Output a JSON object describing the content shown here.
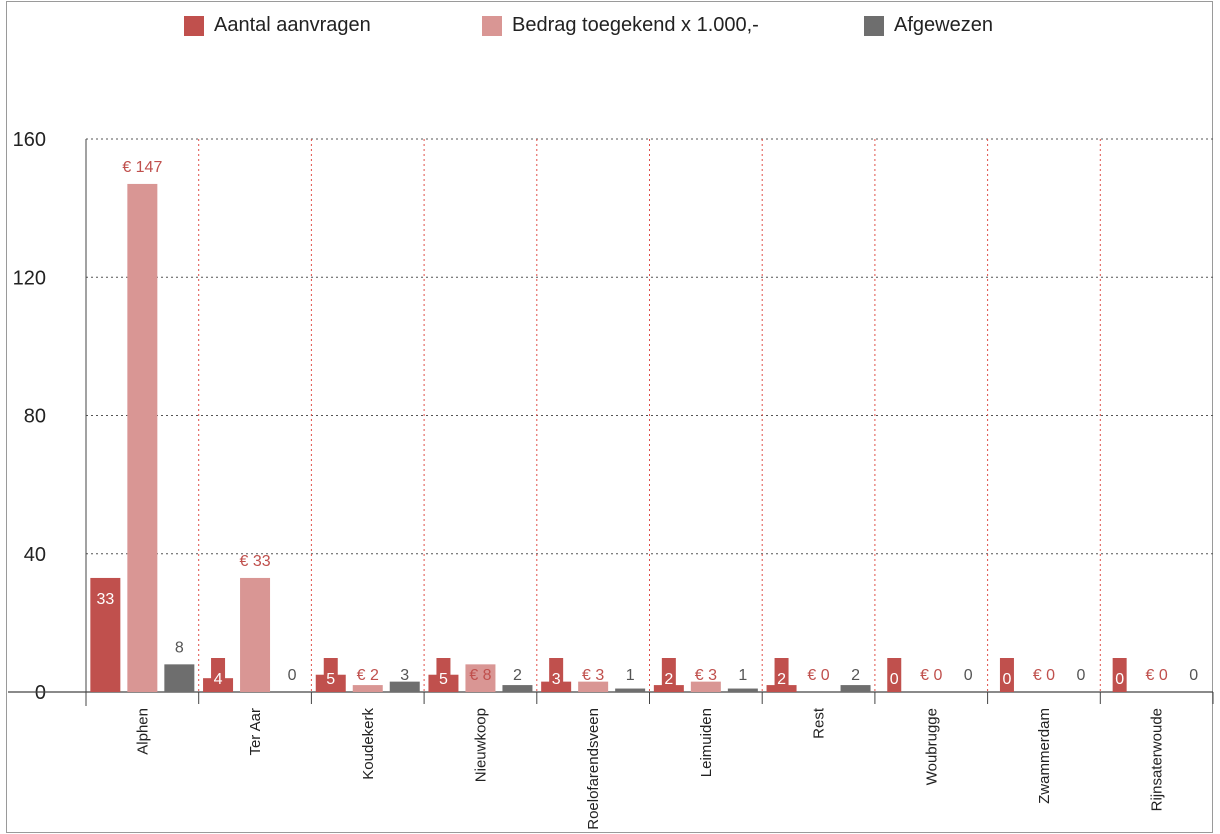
{
  "chart_data": {
    "type": "bar",
    "categories": [
      "Alphen",
      "Ter Aar",
      "Koudekerk",
      "Nieuwkoop",
      "Roelofarendsveen",
      "Leimuiden",
      "Rest",
      "Woubrugge",
      "Zwammerdam",
      "Rijnsaterwoude"
    ],
    "series": [
      {
        "name": "Aantal aanvragen",
        "color": "#c0504d",
        "values": [
          33,
          4,
          5,
          5,
          3,
          2,
          2,
          0,
          0,
          0
        ],
        "labels": [
          "33",
          "4",
          "5",
          "5",
          "3",
          "2",
          "2",
          "0",
          "0",
          "0"
        ]
      },
      {
        "name": "Bedrag toegekend x 1.000,-",
        "color": "#d99694",
        "values": [
          147,
          33,
          2,
          8,
          3,
          3,
          0,
          0,
          0,
          0
        ],
        "labels": [
          "€ 147",
          "€ 33",
          "€ 2",
          "€ 8",
          "€ 3",
          "€ 3",
          "€ 0",
          "€ 0",
          "€ 0",
          "€ 0"
        ]
      },
      {
        "name": "Afgewezen",
        "color": "#6e6e6e",
        "values": [
          8,
          0,
          3,
          2,
          1,
          1,
          2,
          0,
          0,
          0
        ],
        "labels": [
          "8",
          "0",
          "3",
          "2",
          "1",
          "1",
          "2",
          "0",
          "0",
          "0"
        ]
      }
    ],
    "ylim": [
      0,
      160
    ],
    "yticks": [
      0,
      40,
      80,
      120,
      160
    ],
    "title": "",
    "xlabel": "",
    "ylabel": "",
    "grid": true,
    "legend": "top"
  }
}
